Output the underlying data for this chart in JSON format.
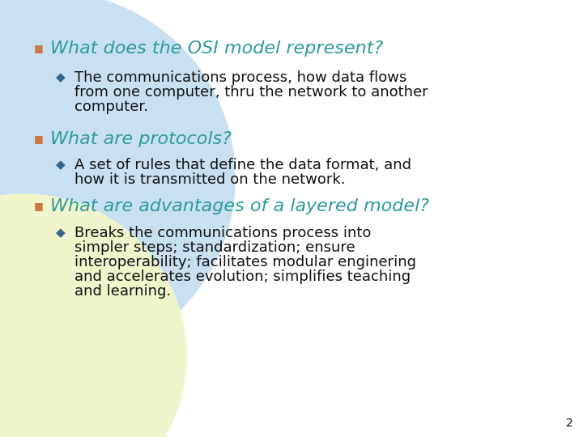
{
  "bg_color": "#ffffff",
  "circle_color_blue": "#c8e0f0",
  "circle_color_yellow": "#f0f5cc",
  "bullet_sq_color": "#cc7744",
  "bullet_diamond_color": "#336688",
  "heading_color": "#2d9b9b",
  "text_color": "#111111",
  "page_number": "2",
  "headings": [
    "What does the OSI model represent?",
    "What are protocols?",
    "What are advantages of a layered model?"
  ],
  "bullet1_lines": [
    "The communications process, how data flows",
    "from one computer, thru the network to another",
    "computer."
  ],
  "bullet2_lines": [
    "A set of rules that define the data format, and",
    "how it is transmitted on the network."
  ],
  "bullet3_lines": [
    "Breaks the communications process into",
    "simpler steps; standardization; ensure",
    "interoperability; facilitates modular enginering",
    "and accelerates evolution; simplifies teaching",
    "and learning."
  ],
  "heading_fontsize": 16,
  "bullet_fontsize": 13,
  "sq_fontsize": 9,
  "diamond_fontsize": 11
}
